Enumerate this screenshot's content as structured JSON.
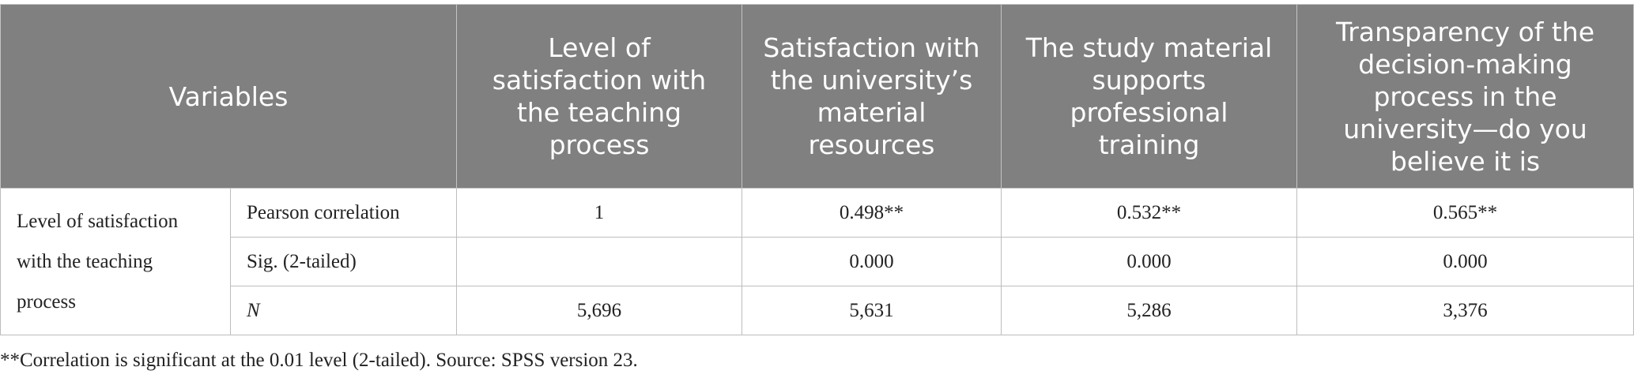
{
  "header": {
    "variables": "Variables",
    "columns": [
      "Level of satisfaction with the teaching process",
      "Satisfaction with the university’s material resources",
      "The study material supports professional training",
      "Transparency of the decision-making process in the university—do you believe it is"
    ]
  },
  "row_group": {
    "label": "Level of satisfaction with the teaching process",
    "rows": [
      {
        "stat": "Pearson correlation",
        "values": [
          "1",
          "0.498**",
          "0.532**",
          "0.565**"
        ]
      },
      {
        "stat": "Sig. (2-tailed)",
        "values": [
          "",
          "0.000",
          "0.000",
          "0.000"
        ]
      },
      {
        "stat": "N",
        "values": [
          "5,696",
          "5,631",
          "5,286",
          "3,376"
        ]
      }
    ]
  },
  "footnote": "**Correlation is significant at the 0.01 level (2-tailed). Source: SPSS version 23."
}
